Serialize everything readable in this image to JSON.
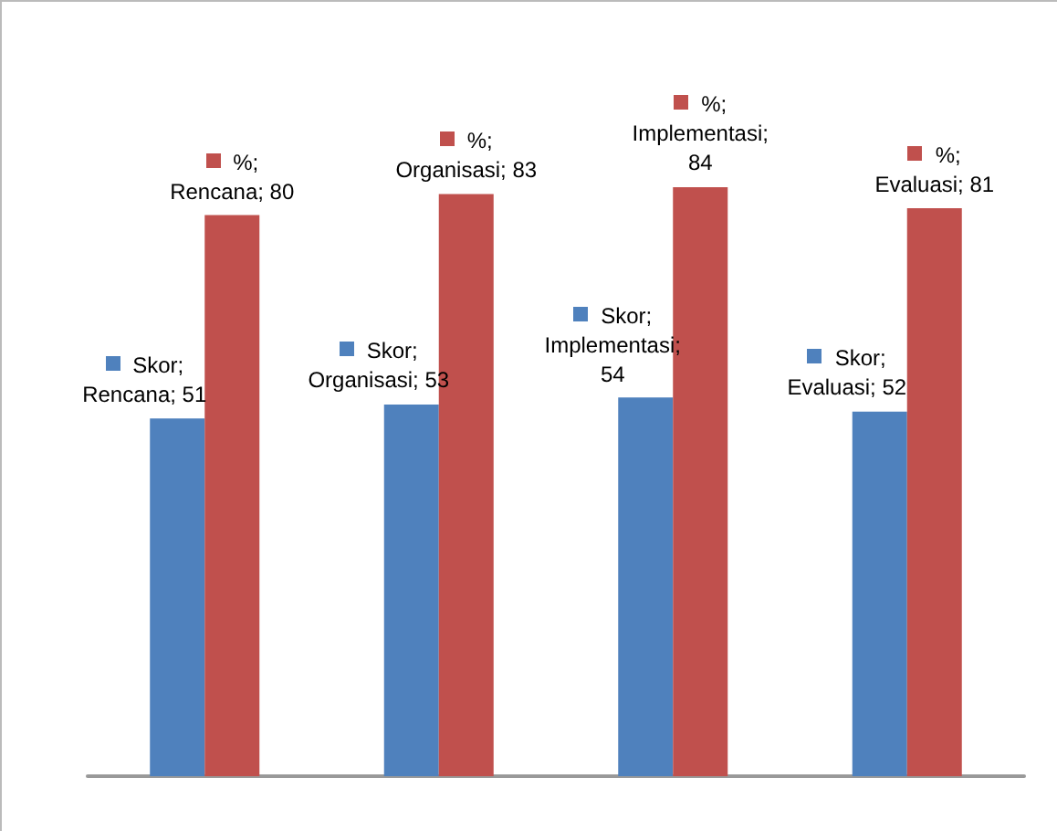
{
  "chart_data": {
    "type": "bar",
    "categories": [
      null,
      null,
      null,
      null
    ],
    "series": [
      {
        "color": "#4f81bd",
        "values": [
          51,
          53,
          54,
          52
        ],
        "value_labels": [
          "Skor; Rencana; 51",
          "Skor; Organisasi; 53",
          "Skor; Implementasi; 54",
          "Skor; Evaluasi; 52"
        ]
      },
      {
        "color": "#c0504d",
        "values": [
          80,
          83,
          84,
          81
        ],
        "value_labels": [
          "%; Rencana; 80",
          "%; Organisasi; 83",
          "%; Implementasi; 84",
          "%; Evaluasi; 81"
        ]
      }
    ],
    "tick_labels": false
  }
}
